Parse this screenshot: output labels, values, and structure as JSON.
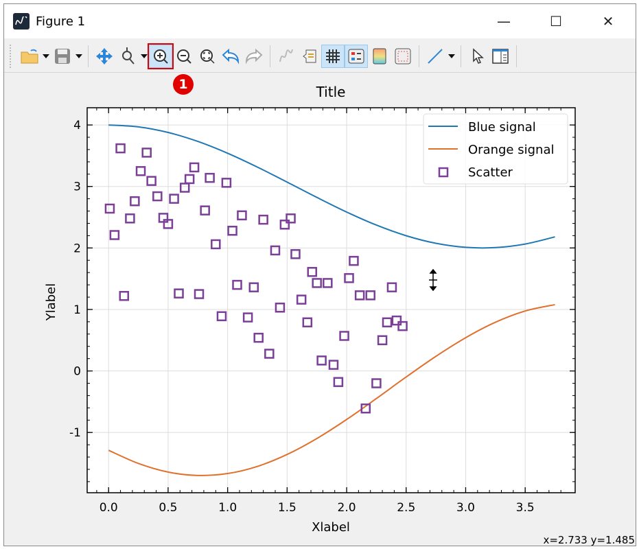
{
  "window": {
    "title": "Figure 1",
    "minimize": "—",
    "maximize": "☐",
    "close": "✕"
  },
  "toolbar": {
    "items": [
      "open-folder",
      "save",
      "pan",
      "zoom-point",
      "zoom-in",
      "zoom-out",
      "zoom-fit",
      "undo",
      "redo",
      "curve",
      "annotation",
      "grid",
      "legend",
      "colormap",
      "frame",
      "line-style",
      "pointer",
      "layout"
    ],
    "active": [
      "zoom-in",
      "grid",
      "legend"
    ],
    "highlighted": "zoom-in",
    "badge": "1"
  },
  "status": "x=2.733 y=1.485",
  "chart_data": {
    "type": "line+scatter",
    "title": "Title",
    "xlabel": "Xlabel",
    "ylabel": "Ylabel",
    "xlim": [
      -0.18,
      3.92
    ],
    "ylim": [
      -1.98,
      4.28
    ],
    "xticks": [
      "0.0",
      "0.5",
      "1.0",
      "1.5",
      "2.0",
      "2.5",
      "3.0",
      "3.5"
    ],
    "yticks": [
      "-1",
      "0",
      "1",
      "2",
      "3",
      "4"
    ],
    "grid": true,
    "legend": "top-right",
    "series": [
      {
        "name": "Blue signal",
        "type": "line",
        "color": "#1f77b4",
        "x": [
          0,
          0.25,
          0.5,
          0.75,
          1,
          1.25,
          1.5,
          1.75,
          2,
          2.25,
          2.5,
          2.75,
          3,
          3.25,
          3.5,
          3.75
        ],
        "y": [
          4.0,
          3.969,
          3.878,
          3.732,
          3.54,
          3.315,
          3.071,
          2.822,
          2.584,
          2.372,
          2.199,
          2.076,
          2.01,
          2.006,
          2.064,
          2.18
        ]
      },
      {
        "name": "Orange signal",
        "type": "line",
        "color": "#e0702d",
        "x": [
          0,
          0.25,
          0.5,
          0.75,
          1,
          1.25,
          1.5,
          1.75,
          2,
          2.25,
          2.5,
          2.75,
          3,
          3.25,
          3.5,
          3.75
        ],
        "y": [
          -1.29,
          -1.504,
          -1.644,
          -1.699,
          -1.668,
          -1.552,
          -1.357,
          -1.098,
          -0.789,
          -0.448,
          -0.098,
          0.238,
          0.541,
          0.792,
          0.975,
          1.078
        ]
      },
      {
        "name": "Scatter",
        "type": "scatter",
        "marker": "square",
        "color": "#7b3f98",
        "points": [
          [
            0.01,
            2.64
          ],
          [
            0.05,
            2.21
          ],
          [
            0.1,
            3.62
          ],
          [
            0.13,
            1.22
          ],
          [
            0.18,
            2.48
          ],
          [
            0.22,
            2.76
          ],
          [
            0.27,
            3.25
          ],
          [
            0.32,
            3.55
          ],
          [
            0.36,
            3.09
          ],
          [
            0.41,
            2.84
          ],
          [
            0.46,
            2.49
          ],
          [
            0.5,
            2.39
          ],
          [
            0.55,
            2.8
          ],
          [
            0.59,
            1.26
          ],
          [
            0.64,
            2.98
          ],
          [
            0.68,
            3.12
          ],
          [
            0.72,
            3.31
          ],
          [
            0.76,
            1.25
          ],
          [
            0.81,
            2.61
          ],
          [
            0.85,
            3.14
          ],
          [
            0.9,
            2.06
          ],
          [
            0.95,
            0.89
          ],
          [
            0.99,
            3.06
          ],
          [
            1.04,
            2.28
          ],
          [
            1.08,
            1.4
          ],
          [
            1.12,
            2.53
          ],
          [
            1.17,
            0.87
          ],
          [
            1.22,
            1.36
          ],
          [
            1.26,
            0.54
          ],
          [
            1.3,
            2.46
          ],
          [
            1.35,
            0.28
          ],
          [
            1.4,
            1.96
          ],
          [
            1.44,
            1.03
          ],
          [
            1.48,
            2.38
          ],
          [
            1.53,
            2.48
          ],
          [
            1.57,
            1.9
          ],
          [
            1.62,
            1.16
          ],
          [
            1.67,
            0.79
          ],
          [
            1.71,
            1.61
          ],
          [
            1.75,
            1.43
          ],
          [
            1.79,
            0.17
          ],
          [
            1.84,
            1.43
          ],
          [
            1.89,
            0.1
          ],
          [
            1.93,
            -0.18
          ],
          [
            1.98,
            0.57
          ],
          [
            2.02,
            1.51
          ],
          [
            2.06,
            1.79
          ],
          [
            2.11,
            1.23
          ],
          [
            2.16,
            -0.61
          ],
          [
            2.2,
            1.23
          ],
          [
            2.25,
            -0.2
          ],
          [
            2.3,
            0.5
          ],
          [
            2.34,
            0.79
          ],
          [
            2.38,
            1.36
          ],
          [
            2.42,
            0.82
          ],
          [
            2.47,
            0.73
          ]
        ]
      }
    ]
  }
}
